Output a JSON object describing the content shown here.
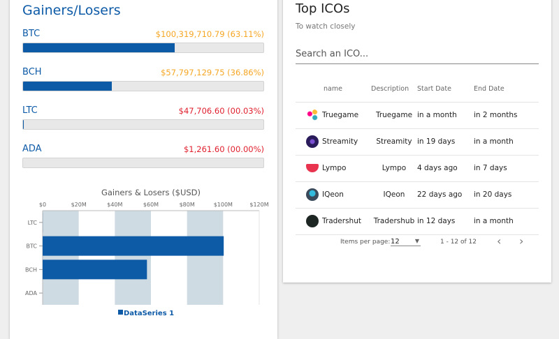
{
  "left": {
    "title": "Gainers/Losers",
    "coins": [
      {
        "symbol": "BTC",
        "value": "$100,319,710.79 (63.11%)",
        "percent": 63.11,
        "color": "#f5a623"
      },
      {
        "symbol": "BCH",
        "value": "$57,797,129.75 (36.86%)",
        "percent": 36.86,
        "color": "#f5a623"
      },
      {
        "symbol": "LTC",
        "value": "$47,706.60 (00.03%)",
        "percent": 0.03,
        "color": "#e0202f"
      },
      {
        "symbol": "ADA",
        "value": "$1,261.60 (00.00%)",
        "percent": 0.0,
        "color": "#e0202f"
      }
    ]
  },
  "chart_data": {
    "type": "bar",
    "orientation": "horizontal",
    "title": "Gainers & Losers ($USD)",
    "categories": [
      "LTC",
      "BTC",
      "BCH",
      "ADA"
    ],
    "series": [
      {
        "name": "DataSeries 1",
        "values": [
          47706.6,
          100319710.79,
          57797129.75,
          1261.6
        ],
        "color": "#0d5aa7"
      }
    ],
    "xlim": [
      0,
      120000000
    ],
    "xticks": [
      "$0",
      "$20M",
      "$40M",
      "$60M",
      "$80M",
      "$100M",
      "$120M"
    ],
    "legend": "bottom",
    "grid": "alternating bands"
  },
  "right": {
    "title": "Top ICOs",
    "subtitle": "To watch closely",
    "search_placeholder": "Search an ICO...",
    "columns": [
      "name",
      "Description",
      "Start Date",
      "End Date"
    ],
    "rows": [
      {
        "name": "Truegame",
        "description": "Truegame",
        "start": "in a month",
        "end": "in 2 months",
        "icon": "truegame-logo"
      },
      {
        "name": "Streamity",
        "description": "Streamity",
        "start": "in 19 days",
        "end": "in a month",
        "icon": "streamity-logo"
      },
      {
        "name": "Lympo",
        "description": "Lympo",
        "start": "4 days ago",
        "end": "in 7 days",
        "icon": "lympo-logo"
      },
      {
        "name": "IQeon",
        "description": "IQeon",
        "start": "22 days ago",
        "end": "in 20 days",
        "icon": "iqeon-logo"
      },
      {
        "name": "Tradershut",
        "description": "Tradershub",
        "start": "in 12 days",
        "end": "in a month",
        "icon": "tradershub-logo"
      }
    ],
    "pagination": {
      "label": "Items per page:",
      "per_page": "12",
      "range": "1 - 12 of 12"
    }
  }
}
